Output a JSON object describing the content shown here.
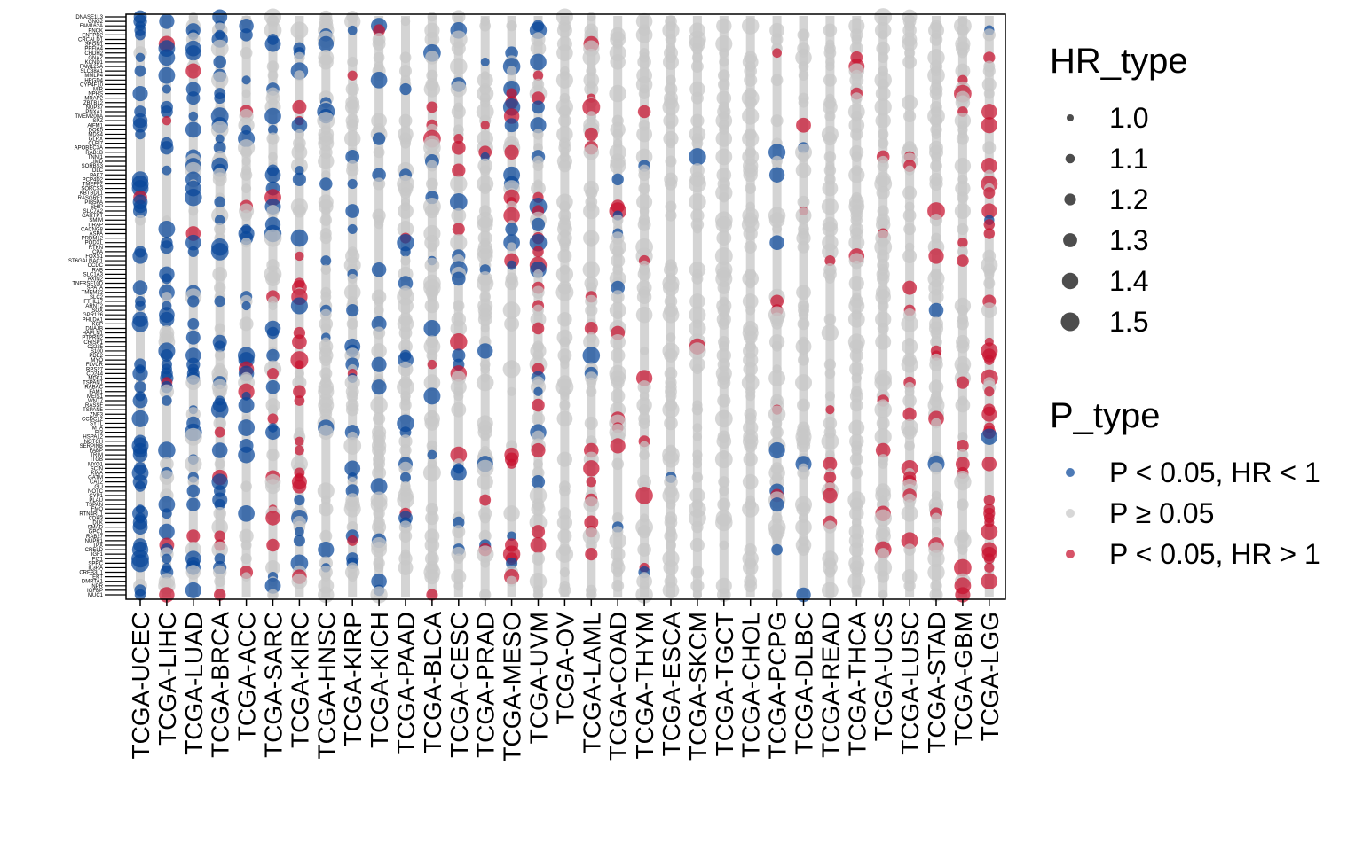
{
  "chart_data": {
    "type": "scatter",
    "x_categories": [
      "TCGA-UCEC",
      "TCGA-LIHC",
      "TCGA-LUAD",
      "TCGA-BRCA",
      "TCGA-ACC",
      "TCGA-SARC",
      "TCGA-KIRC",
      "TCGA-HNSC",
      "TCGA-KIRP",
      "TCGA-KICH",
      "TCGA-PAAD",
      "TCGA-BLCA",
      "TCGA-CESC",
      "TCGA-PRAD",
      "TCGA-MESO",
      "TCGA-UVM",
      "TCGA-OV",
      "TCGA-LAML",
      "TCGA-COAD",
      "TCGA-THYM",
      "TCGA-ESCA",
      "TCGA-SKCM",
      "TCGA-TGCT",
      "TCGA-CHOL",
      "TCGA-PCPG",
      "TCGA-DLBC",
      "TCGA-READ",
      "TCGA-THCA",
      "TCGA-UCS",
      "TCGA-LUSC",
      "TCGA-STAD",
      "TCGA-GBM",
      "TCGA-LGG"
    ],
    "y_labels_visible": [
      "DNASE1L3",
      "GNG2",
      "FAM162A",
      "PNCK",
      "ENTPD2",
      "CRCALD1",
      "SPON1",
      "PPFIA4",
      "CHDH2",
      "GNAZ",
      "KCND1",
      "FAM125A",
      "SLC38A1",
      "MMLP4",
      "HPGD4",
      "CYP4F10",
      "MIR",
      "NPHS",
      "MRAP2",
      "ZBTB12",
      "NUP37",
      "PNXA1",
      "TMEM200A",
      "SPZ",
      "AIFM1",
      "DOK5",
      "MDS4",
      "GLRX",
      "CLPI7",
      "APOBEC3A",
      "RAB1B",
      "TNNI1",
      "LIMD",
      "SORBS3",
      "DLC",
      "PAK7",
      "PCP4D2",
      "TMEFF2",
      "SORCS3",
      "KBTBD11",
      "RASGRF1",
      "PIB5PA",
      "SHIP",
      "SLC7A2",
      "CARTPT",
      "SMIM",
      "TIRAP",
      "CACNG8",
      "ASPA",
      "PRDM12",
      "PODXL",
      "RTKN",
      "CPA",
      "FOXS1",
      "ST6GALNAC1",
      "CCDC",
      "RAB",
      "SLC1A3",
      "AXIN2",
      "TNFRSF10D",
      "SPATA",
      "TMEM22",
      "SLC2",
      "FTHL17",
      "ARNT2",
      "SOX",
      "GPR126",
      "PHLDA1",
      "KCP",
      "DNAJB",
      "HAPLN1",
      "PTPRN2",
      "CRISP1",
      "C2225",
      "S100",
      "PDE2",
      "MYO",
      "FLVCR",
      "RPS27",
      "CD244",
      "MDK1",
      "TSPAN1",
      "RABAC",
      "FAM1",
      "MEIS1",
      "WNT7",
      "RASSF",
      "TSPAN5",
      "ZNF3",
      "CCDC12",
      "SYTL",
      "MTA",
      "PI3",
      "HSPA12",
      "NOTCH",
      "SERPINB",
      "FABP",
      "TRIM",
      "ITGB",
      "MYO1",
      "SCIN",
      "KIAA",
      "GATM",
      "CA12",
      "GLI",
      "NOTC",
      "CYP1",
      "PLAU",
      "TSPAN",
      "FMO",
      "RTN4RL1",
      "CDH3",
      "DLK",
      "SMAD",
      "GPC1",
      "RAB27",
      "NUPR1",
      "TPX",
      "CRELD",
      "IGF1",
      "FIZ1",
      "SPRC",
      "IL3RA",
      "CREB3L1",
      "TERT",
      "DMRTA1",
      "NPR",
      "IGFBP",
      "MUC1"
    ],
    "size_legend": {
      "title": "HR_type",
      "values": [
        "1.0",
        "1.1",
        "1.2",
        "1.3",
        "1.4",
        "1.5"
      ]
    },
    "color_legend": {
      "title": "P_type",
      "levels": [
        {
          "label": "P < 0.05, HR < 1",
          "color": "#08479a"
        },
        {
          "label": "P ≥ 0.05",
          "color": "#c7c7c7"
        },
        {
          "label": "P < 0.05, HR > 1",
          "color": "#c8102e"
        }
      ]
    },
    "grid": false,
    "legend_position": "right",
    "points": []
  }
}
